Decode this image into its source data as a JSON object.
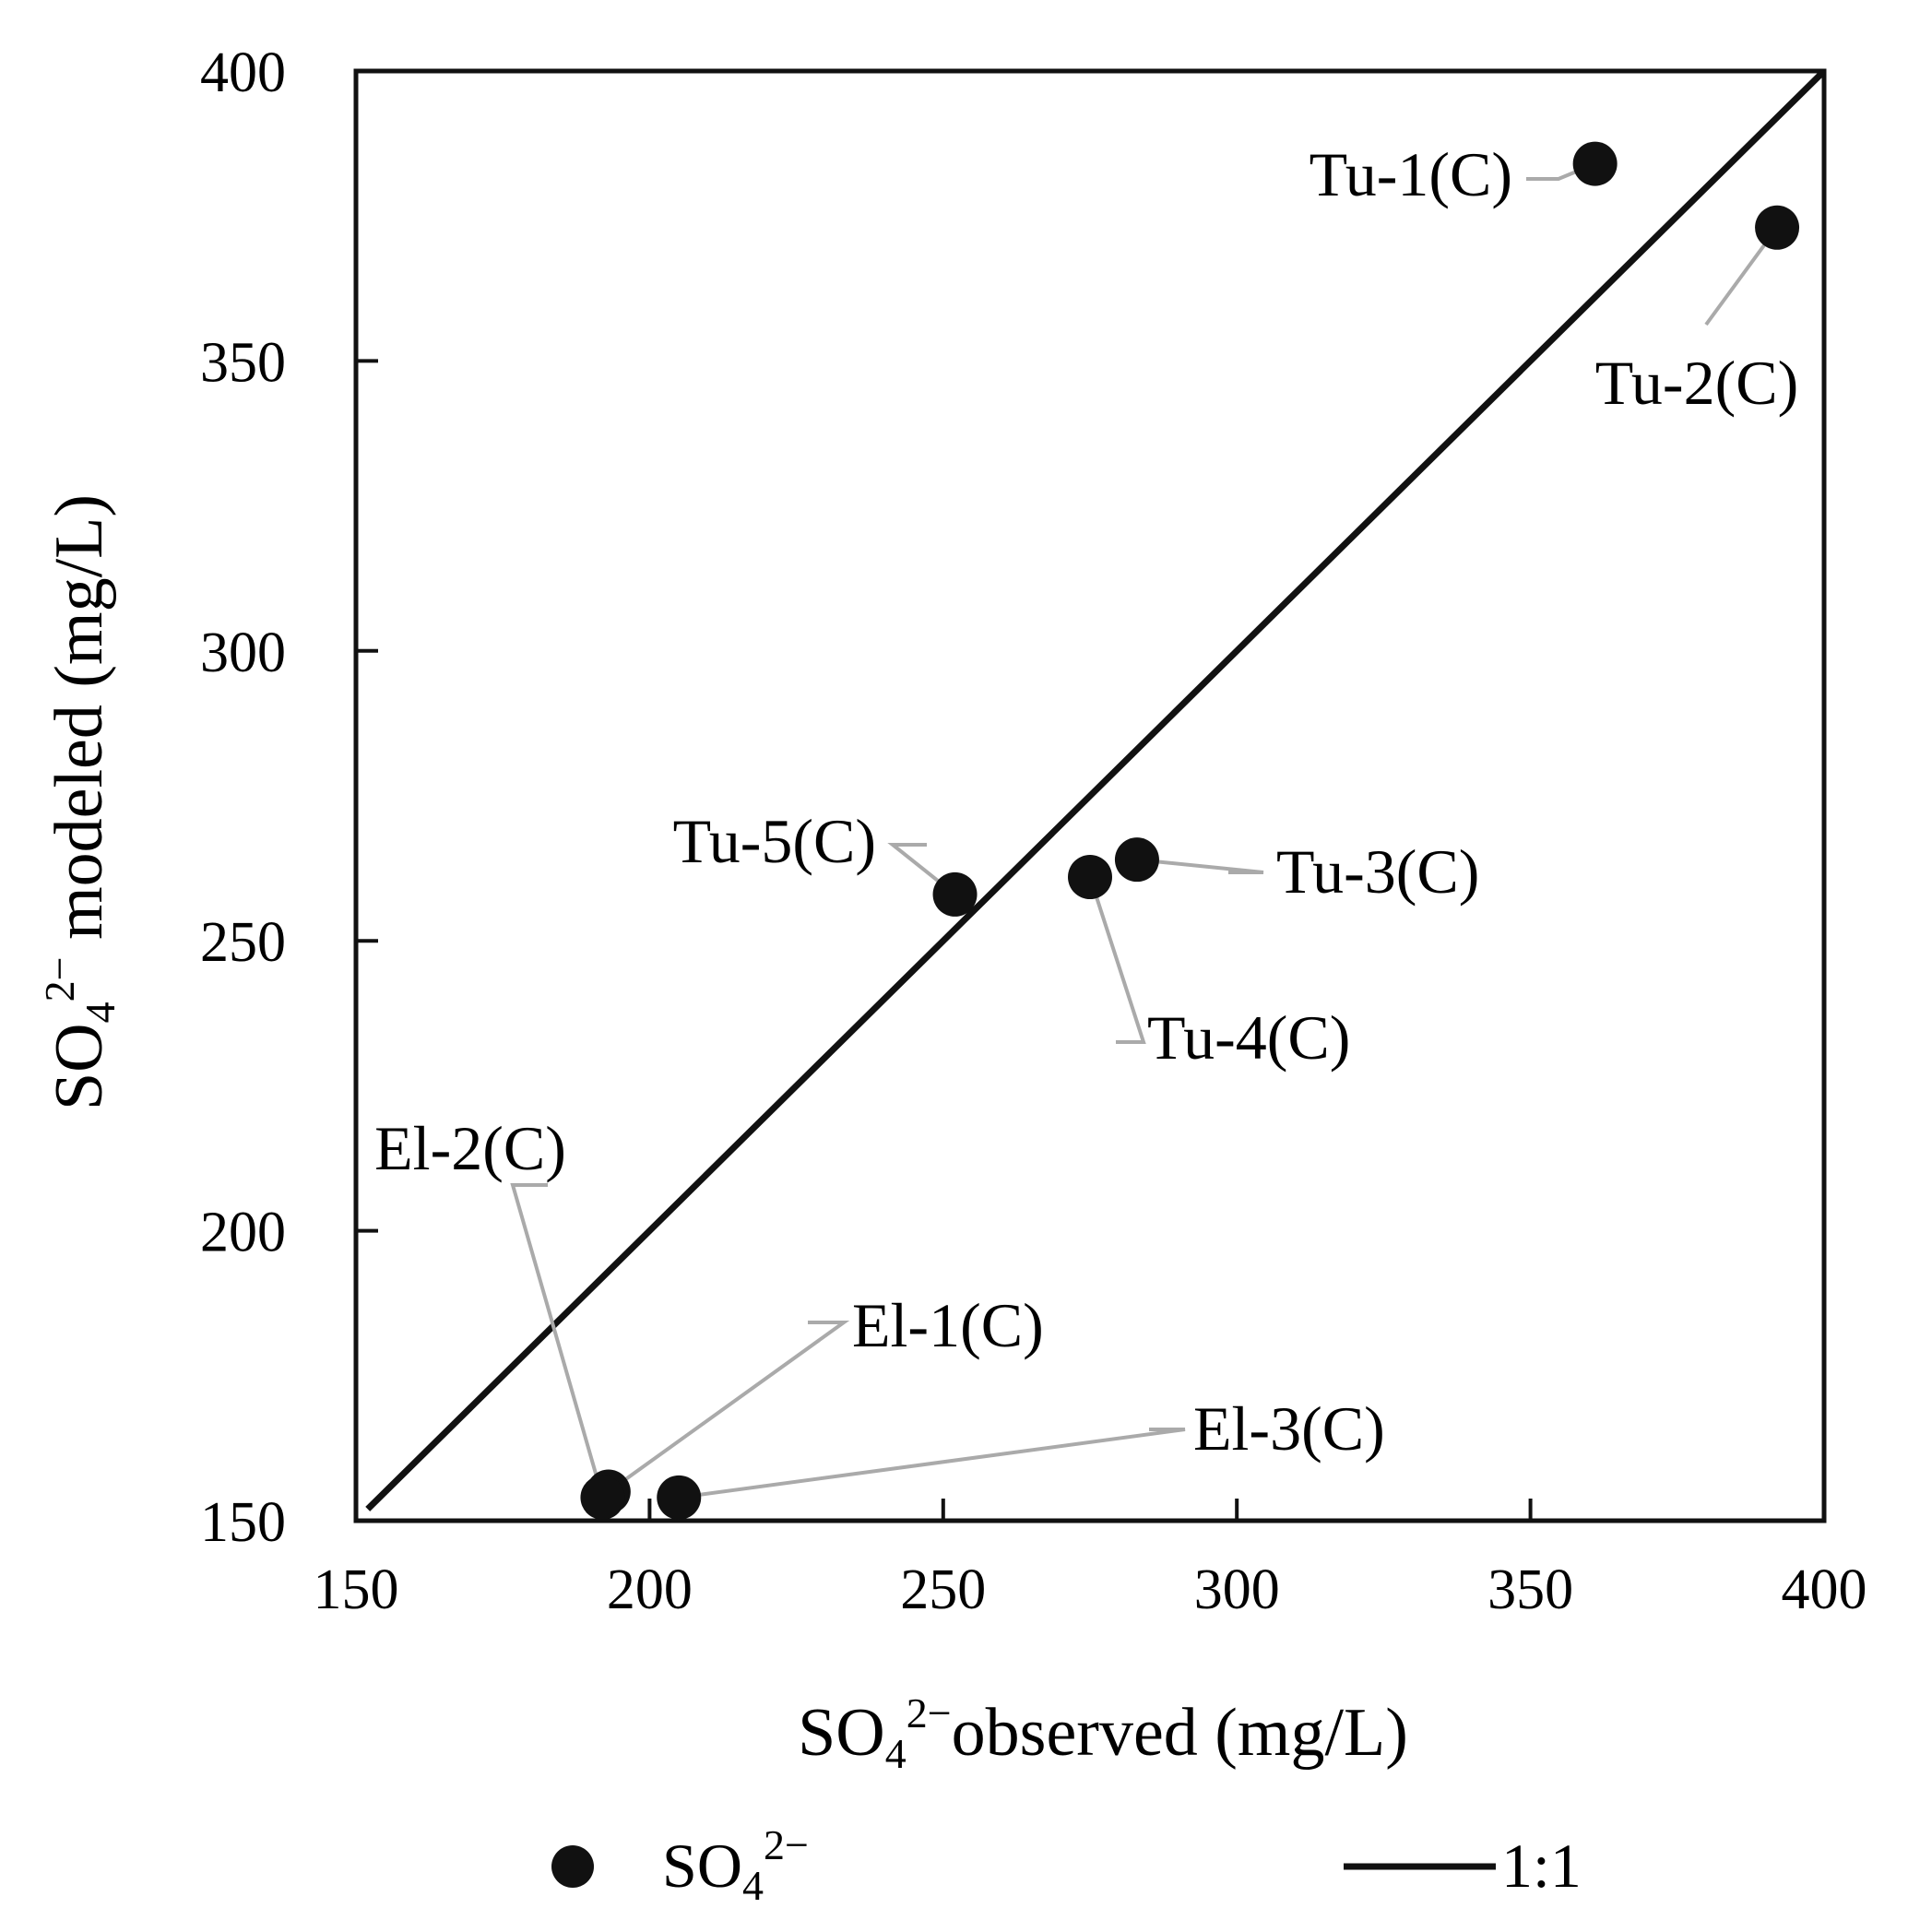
{
  "chart_data": {
    "type": "scatter",
    "xlabel": {
      "base": "SO",
      "sub": "4",
      "sup": "2−",
      "rest": "observed (mg/L)"
    },
    "ylabel": {
      "base": "SO",
      "sub": "4",
      "sup": "2−",
      "rest": " modeled (mg/L)"
    },
    "xlim": [
      150,
      400
    ],
    "ylim": [
      150,
      400
    ],
    "xticks": [
      "150",
      "200",
      "250",
      "300",
      "350",
      "400"
    ],
    "yticks": [
      "150",
      "200",
      "250",
      "300",
      "350",
      "400"
    ],
    "grid": false,
    "colors": {
      "points": "#111111",
      "line": "#111111",
      "leader": "#aaaaaa"
    },
    "series": [
      {
        "kind": "scatter",
        "points": [
          {
            "label": "Tu-1(C)",
            "x": 361,
            "y": 384
          },
          {
            "label": "Tu-2(C)",
            "x": 392,
            "y": 373
          },
          {
            "label": "Tu-3(C)",
            "x": 283,
            "y": 264
          },
          {
            "label": "Tu-4(C)",
            "x": 275,
            "y": 261
          },
          {
            "label": "Tu-5(C)",
            "x": 252,
            "y": 258
          },
          {
            "label": "El-1(C)",
            "x": 193,
            "y": 155
          },
          {
            "label": "El-2(C)",
            "x": 192,
            "y": 154
          },
          {
            "label": "El-3(C)",
            "x": 205,
            "y": 154
          }
        ]
      },
      {
        "kind": "line",
        "x": [
          152,
          400
        ],
        "y": [
          152,
          400
        ]
      }
    ],
    "legend": {
      "placement": "bottom",
      "entries": [
        {
          "marker": "circle",
          "base": "SO",
          "sub": "4",
          "sup": "2−"
        },
        {
          "marker": "line",
          "text": "1:1"
        }
      ]
    }
  }
}
